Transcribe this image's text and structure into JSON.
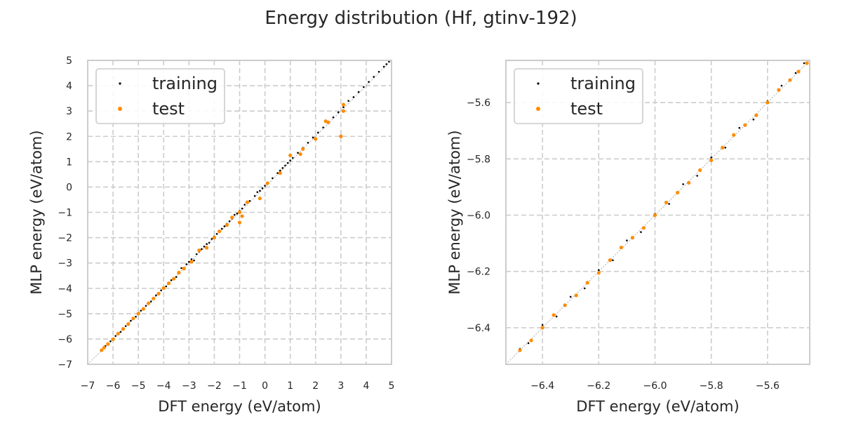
{
  "figure": {
    "title": "Energy distribution (Hf, gtinv-192)"
  },
  "colors": {
    "training": "#000000",
    "test": "#ff8c00",
    "grid": "#cccccc",
    "frame": "#cccccc"
  },
  "chart_data": [
    {
      "type": "scatter",
      "xlabel": "DFT energy (eV/atom)",
      "ylabel": "MLP energy (eV/atom)",
      "xlim": [
        -7,
        5
      ],
      "ylim": [
        -7,
        5
      ],
      "xticks": [
        -7,
        -6,
        -5,
        -4,
        -3,
        -2,
        -1,
        0,
        1,
        2,
        3,
        4,
        5
      ],
      "yticks": [
        -7,
        -6,
        -5,
        -4,
        -3,
        -2,
        -1,
        0,
        1,
        2,
        3,
        4,
        5
      ],
      "grid": true,
      "legend": "top-left",
      "reference_line": "y = x",
      "series": [
        {
          "name": "training",
          "points": [
            [
              -6.45,
              -6.43
            ],
            [
              -6.3,
              -6.28
            ],
            [
              -6.1,
              -6.09
            ],
            [
              -5.9,
              -5.88
            ],
            [
              -5.7,
              -5.72
            ],
            [
              -5.5,
              -5.49
            ],
            [
              -5.3,
              -5.28
            ],
            [
              -5.1,
              -5.12
            ],
            [
              -4.9,
              -4.88
            ],
            [
              -4.7,
              -4.69
            ],
            [
              -4.5,
              -4.52
            ],
            [
              -4.3,
              -4.28
            ],
            [
              -4.1,
              -4.08
            ],
            [
              -3.9,
              -3.92
            ],
            [
              -3.7,
              -3.68
            ],
            [
              -3.5,
              -3.55
            ],
            [
              -3.4,
              -3.35
            ],
            [
              -3.3,
              -3.2
            ],
            [
              -3.2,
              -3.25
            ],
            [
              -3.1,
              -3.05
            ],
            [
              -3.0,
              -2.95
            ],
            [
              -2.9,
              -2.85
            ],
            [
              -2.8,
              -2.9
            ],
            [
              -2.7,
              -2.65
            ],
            [
              -2.6,
              -2.55
            ],
            [
              -2.5,
              -2.45
            ],
            [
              -2.4,
              -2.35
            ],
            [
              -2.3,
              -2.25
            ],
            [
              -2.2,
              -2.2
            ],
            [
              -2.1,
              -2.05
            ],
            [
              -2.0,
              -1.95
            ],
            [
              -1.9,
              -1.85
            ],
            [
              -1.8,
              -1.75
            ],
            [
              -1.7,
              -1.65
            ],
            [
              -1.6,
              -1.55
            ],
            [
              -1.5,
              -1.45
            ],
            [
              -1.4,
              -1.35
            ],
            [
              -1.3,
              -1.25
            ],
            [
              -1.2,
              -1.1
            ],
            [
              -1.1,
              -1.05
            ],
            [
              -1.0,
              -0.95
            ],
            [
              -0.9,
              -0.85
            ],
            [
              -0.8,
              -0.7
            ],
            [
              -0.6,
              -0.55
            ],
            [
              -0.4,
              -0.35
            ],
            [
              -0.3,
              -0.2
            ],
            [
              -0.2,
              -0.15
            ],
            [
              -0.1,
              -0.05
            ],
            [
              0.0,
              0.05
            ],
            [
              0.1,
              0.15
            ],
            [
              0.3,
              0.35
            ],
            [
              0.5,
              0.55
            ],
            [
              0.6,
              0.65
            ],
            [
              0.7,
              0.75
            ],
            [
              0.8,
              0.85
            ],
            [
              0.9,
              0.95
            ],
            [
              1.0,
              1.05
            ],
            [
              1.1,
              1.15
            ],
            [
              1.3,
              1.35
            ],
            [
              1.5,
              1.55
            ],
            [
              1.7,
              1.75
            ],
            [
              1.9,
              1.95
            ],
            [
              2.1,
              2.15
            ],
            [
              2.3,
              2.35
            ],
            [
              2.5,
              2.55
            ],
            [
              2.7,
              2.75
            ],
            [
              2.9,
              2.95
            ],
            [
              3.1,
              3.15
            ],
            [
              3.3,
              3.4
            ],
            [
              3.5,
              3.55
            ],
            [
              3.7,
              3.75
            ],
            [
              3.9,
              3.95
            ],
            [
              4.1,
              4.15
            ],
            [
              4.3,
              4.35
            ],
            [
              4.5,
              4.55
            ],
            [
              4.7,
              4.75
            ],
            [
              4.8,
              4.85
            ],
            [
              4.9,
              4.95
            ]
          ]
        },
        {
          "name": "test",
          "points": [
            [
              -6.45,
              -6.44
            ],
            [
              -6.35,
              -6.34
            ],
            [
              -6.2,
              -6.2
            ],
            [
              -6.0,
              -6.01
            ],
            [
              -5.8,
              -5.79
            ],
            [
              -5.6,
              -5.6
            ],
            [
              -5.4,
              -5.41
            ],
            [
              -5.2,
              -5.19
            ],
            [
              -5.0,
              -5.0
            ],
            [
              -4.8,
              -4.81
            ],
            [
              -4.6,
              -4.59
            ],
            [
              -4.4,
              -4.4
            ],
            [
              -4.2,
              -4.21
            ],
            [
              -4.0,
              -3.99
            ],
            [
              -3.8,
              -3.8
            ],
            [
              -3.6,
              -3.62
            ],
            [
              -3.4,
              -3.38
            ],
            [
              -3.2,
              -3.22
            ],
            [
              -2.9,
              -2.95
            ],
            [
              -2.6,
              -2.5
            ],
            [
              -2.3,
              -2.4
            ],
            [
              -2.0,
              -2.0
            ],
            [
              -1.8,
              -1.75
            ],
            [
              -1.5,
              -1.5
            ],
            [
              -1.3,
              -1.2
            ],
            [
              -1.0,
              -1.0
            ],
            [
              -1.0,
              -1.4
            ],
            [
              -0.9,
              -1.15
            ],
            [
              -0.7,
              -0.6
            ],
            [
              -0.2,
              -0.45
            ],
            [
              0.1,
              0.15
            ],
            [
              0.6,
              0.55
            ],
            [
              1.0,
              1.25
            ],
            [
              1.4,
              1.3
            ],
            [
              1.5,
              1.5
            ],
            [
              2.0,
              1.9
            ],
            [
              2.4,
              2.6
            ],
            [
              2.5,
              2.55
            ],
            [
              3.0,
              2.0
            ],
            [
              3.1,
              3.0
            ],
            [
              3.1,
              3.25
            ]
          ]
        }
      ]
    },
    {
      "type": "scatter",
      "xlabel": "DFT energy (eV/atom)",
      "ylabel": "MLP energy (eV/atom)",
      "xlim": [
        -6.53,
        -5.45
      ],
      "ylim": [
        -6.53,
        -5.45
      ],
      "xticks": [
        -6.4,
        -6.2,
        -6.0,
        -5.8,
        -5.6
      ],
      "yticks": [
        -6.4,
        -6.2,
        -6.0,
        -5.8,
        -5.6
      ],
      "xticklabels": [
        "−6.4",
        "−6.2",
        "−6.0",
        "−5.8",
        "−5.6"
      ],
      "yticklabels": [
        "−6.4",
        "−6.2",
        "−6.0",
        "−5.8",
        "−5.6"
      ],
      "grid": true,
      "legend": "top-left",
      "reference_line": "y = x",
      "series": [
        {
          "name": "training",
          "points": [
            [
              -6.48,
              -6.475
            ],
            [
              -6.45,
              -6.455
            ],
            [
              -6.4,
              -6.39
            ],
            [
              -6.35,
              -6.36
            ],
            [
              -6.3,
              -6.29
            ],
            [
              -6.25,
              -6.26
            ],
            [
              -6.2,
              -6.195
            ],
            [
              -6.15,
              -6.16
            ],
            [
              -6.1,
              -6.09
            ],
            [
              -6.05,
              -6.06
            ],
            [
              -6.0,
              -5.995
            ],
            [
              -5.95,
              -5.96
            ],
            [
              -5.9,
              -5.89
            ],
            [
              -5.85,
              -5.86
            ],
            [
              -5.8,
              -5.795
            ],
            [
              -5.75,
              -5.76
            ],
            [
              -5.7,
              -5.69
            ],
            [
              -5.65,
              -5.66
            ],
            [
              -5.6,
              -5.595
            ],
            [
              -5.55,
              -5.54
            ],
            [
              -5.5,
              -5.495
            ],
            [
              -5.47,
              -5.46
            ]
          ]
        },
        {
          "name": "test",
          "points": [
            [
              -6.48,
              -6.48
            ],
            [
              -6.44,
              -6.445
            ],
            [
              -6.4,
              -6.4
            ],
            [
              -6.36,
              -6.355
            ],
            [
              -6.32,
              -6.32
            ],
            [
              -6.28,
              -6.285
            ],
            [
              -6.24,
              -6.24
            ],
            [
              -6.2,
              -6.205
            ],
            [
              -6.16,
              -6.16
            ],
            [
              -6.12,
              -6.115
            ],
            [
              -6.08,
              -6.08
            ],
            [
              -6.04,
              -6.045
            ],
            [
              -6.0,
              -6.0
            ],
            [
              -5.96,
              -5.955
            ],
            [
              -5.92,
              -5.92
            ],
            [
              -5.88,
              -5.885
            ],
            [
              -5.84,
              -5.84
            ],
            [
              -5.8,
              -5.805
            ],
            [
              -5.76,
              -5.76
            ],
            [
              -5.72,
              -5.715
            ],
            [
              -5.68,
              -5.68
            ],
            [
              -5.64,
              -5.645
            ],
            [
              -5.6,
              -5.6
            ],
            [
              -5.56,
              -5.555
            ],
            [
              -5.52,
              -5.52
            ],
            [
              -5.49,
              -5.49
            ],
            [
              -5.46,
              -5.46
            ]
          ]
        }
      ]
    }
  ]
}
